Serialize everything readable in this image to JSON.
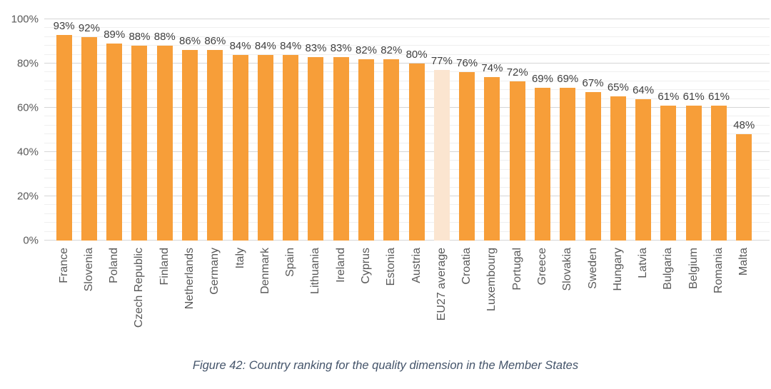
{
  "figure": {
    "caption": "Figure 42: Country ranking for the quality dimension in the Member States"
  },
  "chart_data": {
    "type": "bar",
    "title": "",
    "xlabel": "",
    "ylabel": "",
    "categories": [
      "France",
      "Slovenia",
      "Poland",
      "Czech Republic",
      "Finland",
      "Netherlands",
      "Germany",
      "Italy",
      "Denmark",
      "Spain",
      "Lithuania",
      "Ireland",
      "Cyprus",
      "Estonia",
      "Austria",
      "EU27 average",
      "Croatia",
      "Luxembourg",
      "Portugal",
      "Greece",
      "Slovakia",
      "Sweden",
      "Hungary",
      "Latvia",
      "Bulgaria",
      "Belgium",
      "Romania",
      "Malta"
    ],
    "values": [
      93,
      92,
      89,
      88,
      88,
      86,
      86,
      84,
      84,
      84,
      83,
      83,
      82,
      82,
      80,
      77,
      76,
      74,
      72,
      69,
      69,
      67,
      65,
      64,
      61,
      61,
      61,
      48
    ],
    "value_suffix": "%",
    "highlight_category": "EU27 average",
    "ylim": [
      0,
      100
    ],
    "y_major_step": 20,
    "y_minor_step": 4,
    "y_tick_suffix": "%",
    "grid": true,
    "legend": false,
    "colors": {
      "bar": "#F79E39",
      "highlight_bar": "#FBE5D0",
      "major_grid": "#D6D6D6",
      "minor_grid": "#EFEFEF",
      "axis_text": "#595959",
      "value_text": "#3F3F3F",
      "caption_text": "#44546A",
      "background": "#FFFFFF"
    }
  }
}
